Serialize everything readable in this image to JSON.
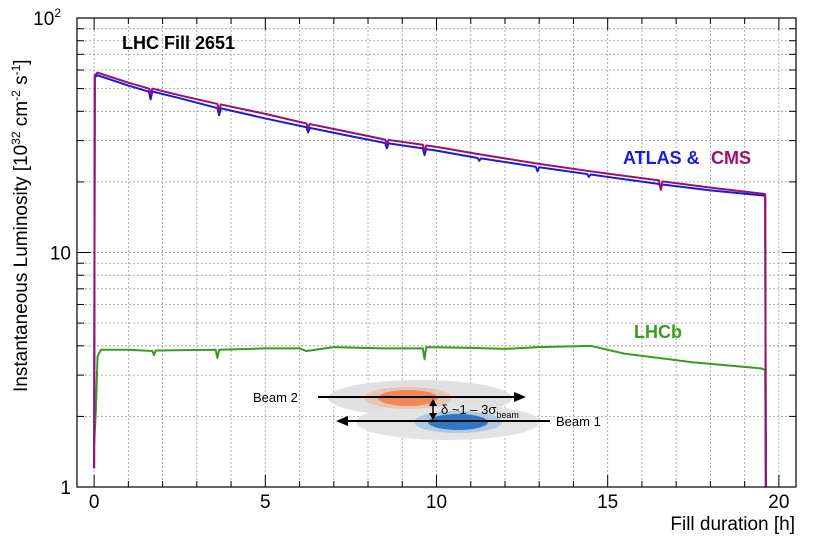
{
  "chart_data": {
    "type": "line",
    "title": "LHC Fill 2651",
    "xlabel": "Fill duration [h]",
    "ylabel_main": "Instantaneous Luminosity [10",
    "ylabel_exp1": "32",
    "ylabel_mid": " cm",
    "ylabel_exp2": "-2",
    "ylabel_mid2": " s",
    "ylabel_exp3": "-1",
    "ylabel_end": "]",
    "xlim": [
      -0.5,
      20.5
    ],
    "ylim": [
      1,
      100
    ],
    "y_scale": "log",
    "grid": true,
    "x_ticks": [
      "0",
      "5",
      "10",
      "15",
      "20"
    ],
    "x_tick_values": [
      0,
      5,
      10,
      15,
      20
    ],
    "y_ticks": [
      "1",
      "10",
      "10"
    ],
    "y_tick_sup": [
      "",
      "",
      "2"
    ],
    "y_tick_values": [
      1,
      10,
      100
    ],
    "labels": {
      "atlas": "ATLAS &",
      "cms": "CMS",
      "lhcb": "LHCb"
    },
    "colors": {
      "atlas": "#1a1adc",
      "cms": "#9b0f6e",
      "lhcb": "#3a9b1a",
      "beam1": "#1f6fbf",
      "beam2": "#e8501a"
    },
    "series": [
      {
        "name": "ATLAS",
        "points": [
          [
            0.0,
            1.2
          ],
          [
            0.02,
            56
          ],
          [
            0.1,
            57
          ],
          [
            1.0,
            51.5
          ],
          [
            1.6,
            48.5
          ],
          [
            1.65,
            45
          ],
          [
            1.7,
            48.6
          ],
          [
            2.5,
            45.5
          ],
          [
            3.6,
            41.3
          ],
          [
            3.65,
            38.5
          ],
          [
            3.7,
            41.2
          ],
          [
            5.0,
            37.3
          ],
          [
            6.2,
            34.2
          ],
          [
            6.25,
            32.5
          ],
          [
            6.3,
            34.0
          ],
          [
            7.5,
            31.3
          ],
          [
            8.5,
            29.3
          ],
          [
            8.55,
            27.8
          ],
          [
            8.6,
            29.2
          ],
          [
            9.6,
            27.8
          ],
          [
            9.65,
            26
          ],
          [
            9.7,
            27.6
          ],
          [
            10.0,
            27.2
          ],
          [
            11.2,
            25.3
          ],
          [
            11.25,
            24.6
          ],
          [
            11.3,
            25.2
          ],
          [
            12.9,
            23.2
          ],
          [
            12.95,
            22.2
          ],
          [
            13.0,
            23.1
          ],
          [
            14.4,
            21.6
          ],
          [
            14.45,
            21.0
          ],
          [
            14.5,
            21.5
          ],
          [
            15.0,
            21.0
          ],
          [
            16.5,
            19.6
          ],
          [
            16.55,
            18.8
          ],
          [
            16.6,
            19.5
          ],
          [
            18.0,
            18.4
          ],
          [
            19.55,
            17.5
          ],
          [
            19.6,
            17.4
          ],
          [
            19.62,
            1.0
          ]
        ]
      },
      {
        "name": "CMS",
        "points": [
          [
            0.0,
            1.2
          ],
          [
            0.02,
            57
          ],
          [
            0.1,
            58.5
          ],
          [
            1.0,
            53
          ],
          [
            1.6,
            50
          ],
          [
            1.65,
            47.5
          ],
          [
            1.7,
            50
          ],
          [
            2.5,
            46.8
          ],
          [
            3.6,
            43
          ],
          [
            3.65,
            40.5
          ],
          [
            3.7,
            42.8
          ],
          [
            5.0,
            39
          ],
          [
            6.2,
            35.5
          ],
          [
            6.25,
            34
          ],
          [
            6.3,
            35.3
          ],
          [
            7.5,
            32.5
          ],
          [
            8.5,
            30.3
          ],
          [
            8.55,
            29
          ],
          [
            8.6,
            30.2
          ],
          [
            9.6,
            28.8
          ],
          [
            9.65,
            27
          ],
          [
            9.7,
            28.6
          ],
          [
            10.0,
            28.2
          ],
          [
            11.2,
            26.3
          ],
          [
            12.9,
            24
          ],
          [
            14.4,
            22.3
          ],
          [
            15.0,
            21.7
          ],
          [
            16.5,
            20.3
          ],
          [
            16.55,
            18.5
          ],
          [
            16.6,
            20.1
          ],
          [
            18.0,
            18.9
          ],
          [
            19.55,
            17.8
          ],
          [
            19.6,
            17.7
          ],
          [
            19.62,
            1.0
          ]
        ]
      },
      {
        "name": "LHCb",
        "points": [
          [
            0.0,
            1.5
          ],
          [
            0.05,
            2.1
          ],
          [
            0.1,
            3.6
          ],
          [
            0.2,
            3.85
          ],
          [
            1.0,
            3.85
          ],
          [
            1.7,
            3.8
          ],
          [
            1.75,
            3.65
          ],
          [
            1.8,
            3.82
          ],
          [
            3.55,
            3.85
          ],
          [
            3.6,
            3.55
          ],
          [
            3.65,
            3.85
          ],
          [
            5.0,
            3.9
          ],
          [
            6.0,
            3.9
          ],
          [
            6.2,
            3.8
          ],
          [
            7.0,
            3.95
          ],
          [
            8.5,
            3.9
          ],
          [
            9.6,
            3.9
          ],
          [
            9.65,
            3.5
          ],
          [
            9.7,
            3.95
          ],
          [
            11.0,
            3.92
          ],
          [
            12.0,
            3.88
          ],
          [
            13.0,
            3.95
          ],
          [
            14.5,
            4.0
          ],
          [
            15.5,
            3.7
          ],
          [
            16.5,
            3.55
          ],
          [
            17.5,
            3.4
          ],
          [
            18.5,
            3.3
          ],
          [
            19.5,
            3.2
          ],
          [
            19.6,
            3.15
          ],
          [
            19.62,
            1.0
          ]
        ]
      }
    ],
    "inset": {
      "beam2_label": "Beam 2",
      "beam1_label": "Beam 1",
      "delta_text": "δ ~1 – 3σ",
      "delta_sub": "beam"
    }
  }
}
